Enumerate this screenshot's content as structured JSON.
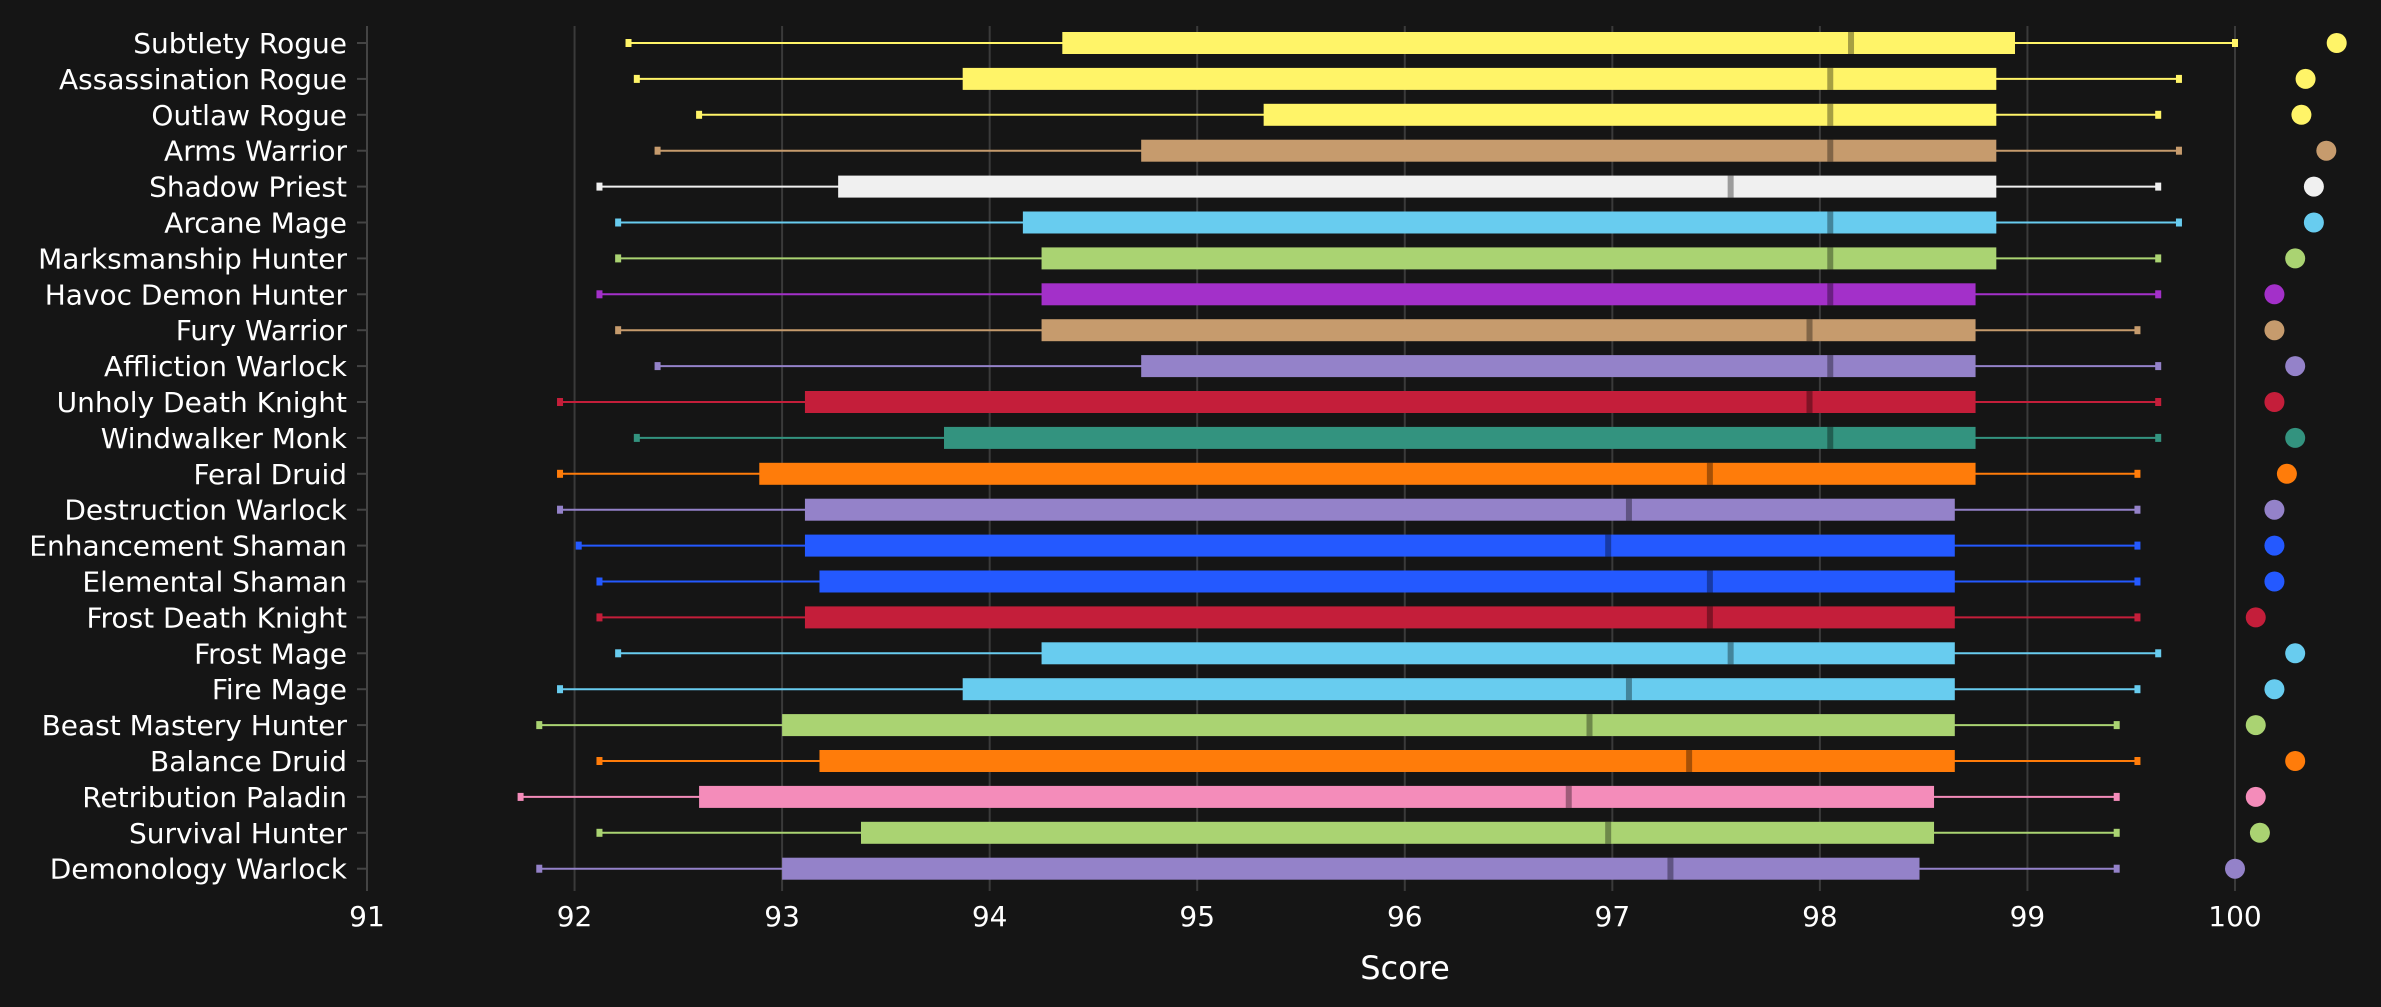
{
  "chart_data": {
    "type": "boxplot",
    "title": "",
    "xlabel": "Score",
    "ylabel": "",
    "xlim": [
      91,
      100
    ],
    "xticks": [
      91,
      92,
      93,
      94,
      95,
      96,
      97,
      98,
      99,
      100
    ],
    "grid": "vertical",
    "background": "#151515",
    "gridline_color": "#3a3a3a",
    "rows": [
      {
        "label": "Subtlety Rogue",
        "color": "#fff468",
        "min": 92.26,
        "q1": 94.35,
        "median": 98.15,
        "q3": 98.94,
        "max": 100.0,
        "dot": 100.49
      },
      {
        "label": "Assassination Rogue",
        "color": "#fff468",
        "min": 92.3,
        "q1": 93.87,
        "median": 98.05,
        "q3": 98.85,
        "max": 99.73,
        "dot": 100.34
      },
      {
        "label": "Outlaw Rogue",
        "color": "#fff468",
        "min": 92.6,
        "q1": 95.32,
        "median": 98.05,
        "q3": 98.85,
        "max": 99.63,
        "dot": 100.32
      },
      {
        "label": "Arms Warrior",
        "color": "#c69b6d",
        "min": 92.4,
        "q1": 94.73,
        "median": 98.05,
        "q3": 98.85,
        "max": 99.73,
        "dot": 100.44
      },
      {
        "label": "Shadow Priest",
        "color": "#f0f0f0",
        "min": 92.12,
        "q1": 93.27,
        "median": 97.57,
        "q3": 98.85,
        "max": 99.63,
        "dot": 100.38
      },
      {
        "label": "Arcane Mage",
        "color": "#68ccef",
        "min": 92.21,
        "q1": 94.16,
        "median": 98.05,
        "q3": 98.85,
        "max": 99.73,
        "dot": 100.38
      },
      {
        "label": "Marksmanship Hunter",
        "color": "#aad372",
        "min": 92.21,
        "q1": 94.25,
        "median": 98.05,
        "q3": 98.85,
        "max": 99.63,
        "dot": 100.29
      },
      {
        "label": "Havoc Demon Hunter",
        "color": "#a330c9",
        "min": 92.12,
        "q1": 94.25,
        "median": 98.05,
        "q3": 98.75,
        "max": 99.63,
        "dot": 100.19
      },
      {
        "label": "Fury Warrior",
        "color": "#c69b6d",
        "min": 92.21,
        "q1": 94.25,
        "median": 97.95,
        "q3": 98.75,
        "max": 99.53,
        "dot": 100.19
      },
      {
        "label": "Affliction Warlock",
        "color": "#9482c9",
        "min": 92.4,
        "q1": 94.73,
        "median": 98.05,
        "q3": 98.75,
        "max": 99.63,
        "dot": 100.29
      },
      {
        "label": "Unholy Death Knight",
        "color": "#c41e3a",
        "min": 91.93,
        "q1": 93.11,
        "median": 97.95,
        "q3": 98.75,
        "max": 99.63,
        "dot": 100.19
      },
      {
        "label": "Windwalker Monk",
        "color": "#33937f",
        "min": 92.3,
        "q1": 93.78,
        "median": 98.05,
        "q3": 98.75,
        "max": 99.63,
        "dot": 100.29
      },
      {
        "label": "Feral Druid",
        "color": "#ff7c0a",
        "min": 91.93,
        "q1": 92.89,
        "median": 97.47,
        "q3": 98.75,
        "max": 99.53,
        "dot": 100.25
      },
      {
        "label": "Destruction Warlock",
        "color": "#9482c9",
        "min": 91.93,
        "q1": 93.11,
        "median": 97.08,
        "q3": 98.65,
        "max": 99.53,
        "dot": 100.19
      },
      {
        "label": "Enhancement Shaman",
        "color": "#2459ff",
        "min": 92.02,
        "q1": 93.11,
        "median": 96.98,
        "q3": 98.65,
        "max": 99.53,
        "dot": 100.19
      },
      {
        "label": "Elemental Shaman",
        "color": "#2459ff",
        "min": 92.12,
        "q1": 93.18,
        "median": 97.47,
        "q3": 98.65,
        "max": 99.53,
        "dot": 100.19
      },
      {
        "label": "Frost Death Knight",
        "color": "#c41e3a",
        "min": 92.12,
        "q1": 93.11,
        "median": 97.47,
        "q3": 98.65,
        "max": 99.53,
        "dot": 100.1
      },
      {
        "label": "Frost Mage",
        "color": "#68ccef",
        "min": 92.21,
        "q1": 94.25,
        "median": 97.57,
        "q3": 98.65,
        "max": 99.63,
        "dot": 100.29
      },
      {
        "label": "Fire Mage",
        "color": "#68ccef",
        "min": 91.93,
        "q1": 93.87,
        "median": 97.08,
        "q3": 98.65,
        "max": 99.53,
        "dot": 100.19
      },
      {
        "label": "Beast Mastery Hunter",
        "color": "#aad372",
        "min": 91.83,
        "q1": 93.0,
        "median": 96.89,
        "q3": 98.65,
        "max": 99.43,
        "dot": 100.1
      },
      {
        "label": "Balance Druid",
        "color": "#ff7c0a",
        "min": 92.12,
        "q1": 93.18,
        "median": 97.37,
        "q3": 98.65,
        "max": 99.53,
        "dot": 100.29
      },
      {
        "label": "Retribution Paladin",
        "color": "#f48cba",
        "min": 91.74,
        "q1": 92.6,
        "median": 96.79,
        "q3": 98.55,
        "max": 99.43,
        "dot": 100.1
      },
      {
        "label": "Survival Hunter",
        "color": "#aad372",
        "min": 92.12,
        "q1": 93.38,
        "median": 96.98,
        "q3": 98.55,
        "max": 99.43,
        "dot": 100.12
      },
      {
        "label": "Demonology Warlock",
        "color": "#9482c9",
        "min": 91.83,
        "q1": 93.0,
        "median": 97.28,
        "q3": 98.48,
        "max": 99.43,
        "dot": 100.0
      }
    ]
  }
}
